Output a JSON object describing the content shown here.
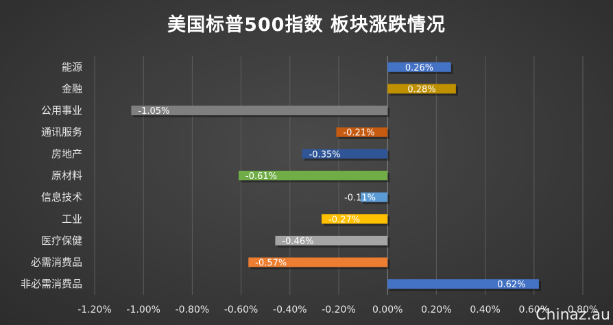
{
  "chart_data": {
    "type": "bar",
    "orientation": "horizontal",
    "title": "美国标普500指数 板块涨跌情况",
    "categories": [
      "能源",
      "金融",
      "公用事业",
      "通讯服务",
      "房地产",
      "原材料",
      "信息技术",
      "工业",
      "医疗保健",
      "必需消费品",
      "非必需消费品"
    ],
    "values": [
      0.26,
      0.28,
      -1.05,
      -0.21,
      -0.35,
      -0.61,
      -0.11,
      -0.27,
      -0.46,
      -0.57,
      0.62
    ],
    "data_labels": [
      "0.26%",
      "0.28%",
      "-1.05%",
      "-0.21%",
      "-0.35%",
      "-0.61%",
      "-0.11%",
      "-0.27%",
      "-0.46%",
      "-0.57%",
      "0.62%"
    ],
    "colors": [
      "#4472C4",
      "#BF9000",
      "#7F7F7F",
      "#C55A11",
      "#2F5597",
      "#70AD47",
      "#5B9BD5",
      "#FFC000",
      "#A5A5A5",
      "#ED7D31",
      "#4472C4"
    ],
    "xlim": [
      -1.2,
      0.8
    ],
    "xticks": [
      -1.2,
      -1.0,
      -0.8,
      -0.6,
      -0.4,
      -0.2,
      0,
      0.2,
      0.4,
      0.6,
      0.8
    ],
    "xtick_labels": [
      "-1.20%",
      "-1.00%",
      "-0.80%",
      "-0.60%",
      "-0.40%",
      "-0.20%",
      "0.00%",
      "0.20%",
      "0.40%",
      "0.60%",
      "0.80%"
    ],
    "grid": true,
    "legend": "none"
  },
  "watermark": "Chinaz.au"
}
